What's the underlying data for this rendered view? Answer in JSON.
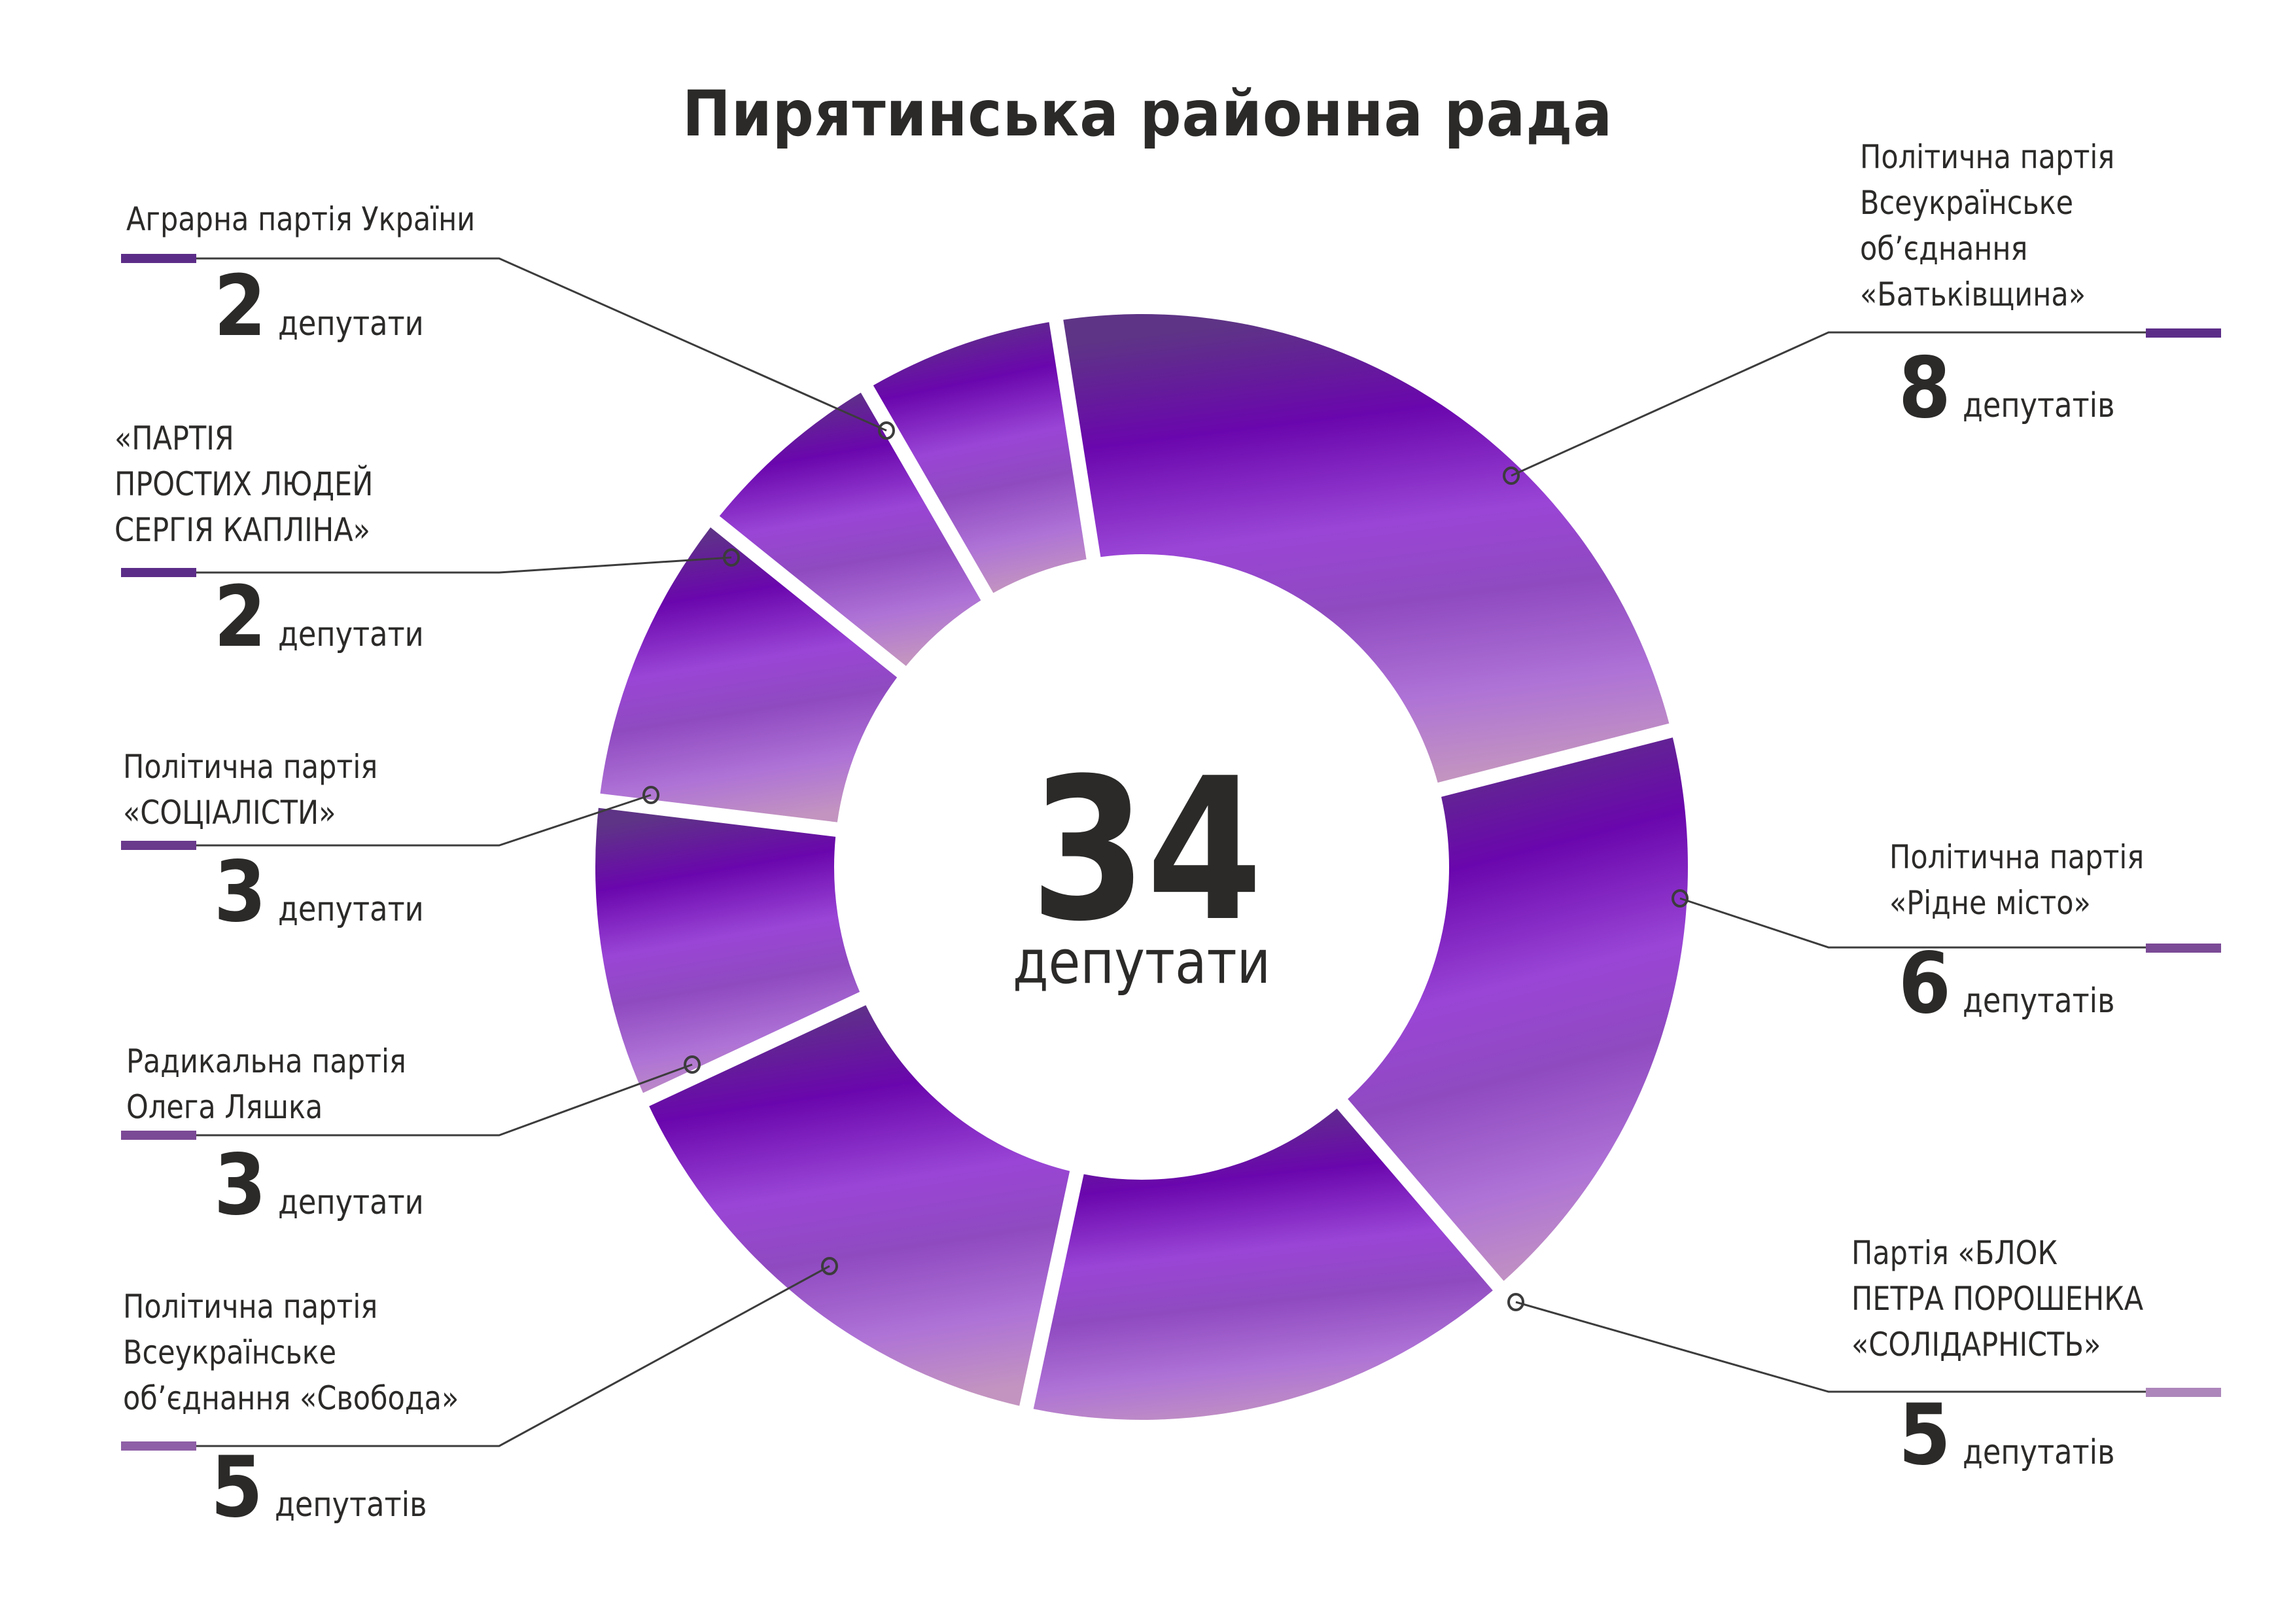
{
  "title": "Пирятинська районна рада",
  "center": {
    "total": "34",
    "word": "депутати"
  },
  "parties": [
    {
      "id": "batkivshchyna",
      "label": "Політична партія\nВсеукраїнське\nоб’єднання\n«Батьківщина»",
      "count": "8",
      "word": "депутатів",
      "side": "right",
      "accent": "#5c2d88"
    },
    {
      "id": "ridne-misto",
      "label": "Політична партія\n«Рідне місто»",
      "count": "6",
      "word": "депутатів",
      "side": "right",
      "accent": "#7b4a96"
    },
    {
      "id": "bpp",
      "label": "Партія «БЛОК\nПЕТРА ПОРОШЕНКА\n«СОЛІДАРНІСТЬ»",
      "count": "5",
      "word": "депутатів",
      "side": "right",
      "accent": "#ad86bb"
    },
    {
      "id": "svoboda",
      "label": "Політична партія\nВсеукраїнське\nоб’єднання «Свобода»",
      "count": "5",
      "word": "депутатів",
      "side": "left",
      "accent": "#8e5fa6"
    },
    {
      "id": "radical",
      "label": "Радикальна партія\nОлега Ляшка",
      "count": "3",
      "word": "депутати",
      "side": "left",
      "accent": "#7b4a96"
    },
    {
      "id": "socialists",
      "label": "Політична партія\n«СОЦІАЛІСТИ»",
      "count": "3",
      "word": "депутати",
      "side": "left",
      "accent": "#6a3a8c"
    },
    {
      "id": "kaplin",
      "label": "«ПАРТІЯ\nПРОСТИХ ЛЮДЕЙ\nСЕРГІЯ КАПЛІНА»",
      "count": "2",
      "word": "депутати",
      "side": "left",
      "accent": "#5c2d88"
    },
    {
      "id": "agrarian",
      "label": "Аграрна партія України",
      "count": "2",
      "word": "депутати",
      "side": "left",
      "accent": "#5c2d88"
    }
  ],
  "colors": {
    "text": "#2b2a29",
    "leader_line": "#3c3c3c",
    "gradient_top": "#5e3486",
    "gradient_mid": "#6a06ad",
    "gradient_light": "#9a45d6",
    "gradient_bottom": "#c394c0"
  },
  "chart_data": {
    "type": "pie",
    "variant": "donut",
    "title": "Пирятинська районна рада",
    "center_label": "34 депутати",
    "total": 34,
    "categories": [
      "Політична партія Всеукраїнське об’єднання «Батьківщина»",
      "Політична партія «Рідне місто»",
      "Партія «БЛОК ПЕТРА ПОРОШЕНКА «СОЛІДАРНІСТЬ»",
      "Політична партія Всеукраїнське об’єднання «Свобода»",
      "Радикальна партія Олега Ляшка",
      "Політична партія «СОЦІАЛІСТИ»",
      "«ПАРТІЯ ПРОСТИХ ЛЮДЕЙ СЕРГІЯ КАПЛІНА»",
      "Аграрна партія України"
    ],
    "values": [
      8,
      6,
      5,
      5,
      3,
      3,
      2,
      2
    ],
    "unit": "депутати",
    "start_angle_deg": -9,
    "direction": "clockwise",
    "legend_position": "callouts"
  }
}
